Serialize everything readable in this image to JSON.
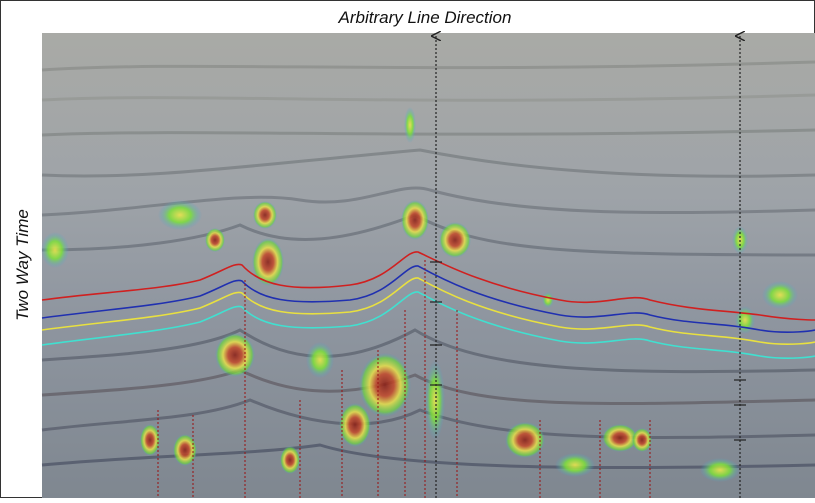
{
  "header": {
    "title": "Arbitrary Line Direction"
  },
  "axis": {
    "y_label": "Two Way Time"
  }
}
